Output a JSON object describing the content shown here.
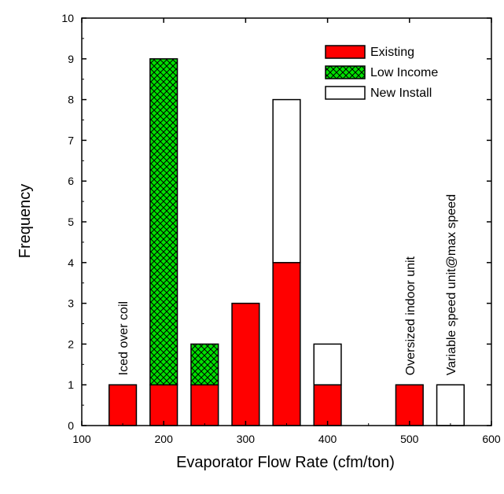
{
  "chart_data": {
    "type": "bar",
    "stacked": true,
    "xlabel": "Evaporator Flow Rate (cfm/ton)",
    "ylabel": "Frequency",
    "xlim": [
      100,
      600
    ],
    "ylim": [
      0,
      10
    ],
    "xticks": [
      "100",
      "200",
      "300",
      "400",
      "500",
      "600"
    ],
    "yticks": [
      "0",
      "1",
      "2",
      "3",
      "4",
      "5",
      "6",
      "7",
      "8",
      "9",
      "10"
    ],
    "bin_width": 33.3,
    "bins": [
      150,
      200,
      250,
      300,
      350,
      400,
      500,
      550
    ],
    "series": [
      {
        "name": "Existing",
        "color": "#ff0000",
        "pattern": "solid",
        "values": [
          1,
          1,
          1,
          3,
          4,
          1,
          1,
          0
        ]
      },
      {
        "name": "Low Income",
        "color": "#00e000",
        "pattern": "crosshatch",
        "values": [
          0,
          8,
          1,
          0,
          0,
          0,
          0,
          0
        ]
      },
      {
        "name": "New Install",
        "color": "#ffffff",
        "pattern": "solid",
        "values": [
          0,
          0,
          0,
          0,
          4,
          1,
          0,
          1
        ]
      }
    ],
    "legend_position": "top-right",
    "annotations": [
      {
        "text": "Iced over coil",
        "x": 150
      },
      {
        "text": "Oversized indoor unit",
        "x": 500
      },
      {
        "text": "Variable speed unit@max speed",
        "x": 550
      }
    ],
    "legend": [
      {
        "label": "Existing"
      },
      {
        "label": "Low Income"
      },
      {
        "label": "New Install"
      }
    ]
  }
}
